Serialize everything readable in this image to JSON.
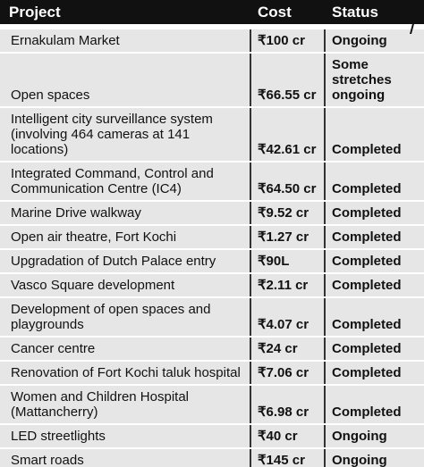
{
  "table": {
    "header": [
      "Project",
      "Cost",
      "Status"
    ],
    "rows": [
      [
        "Ernakulam Market",
        "₹100 cr",
        "Ongoing"
      ],
      [
        "Open spaces",
        "₹66.55 cr",
        "Some stretches ongoing"
      ],
      [
        "Intelligent city surveillance system (involving 464 cameras at 141 locations)",
        "₹42.61 cr",
        "Completed"
      ],
      [
        "Integrated Command, Control and Communication Centre (IC4)",
        "₹64.50 cr",
        "Completed"
      ],
      [
        "Marine Drive walkway",
        "₹9.52 cr",
        "Completed"
      ],
      [
        "Open air theatre, Fort Kochi",
        "₹1.27 cr",
        "Completed"
      ],
      [
        "Upgradation of Dutch Palace entry",
        "₹90L",
        "Completed"
      ],
      [
        "Vasco Square development",
        "₹2.11 cr",
        "Completed"
      ],
      [
        "Development of open spaces and playgrounds",
        "₹4.07 cr",
        "Completed"
      ],
      [
        "Cancer centre",
        "₹24 cr",
        "Completed"
      ],
      [
        "Renovation of Fort Kochi taluk hospital",
        "₹7.06 cr",
        "Completed"
      ],
      [
        "Women and Children Hospital (Mattancherry)",
        "₹6.98 cr",
        "Completed"
      ],
      [
        "LED streetlights",
        "₹40 cr",
        "Ongoing"
      ],
      [
        "Smart roads",
        "₹145 cr",
        "Ongoing"
      ]
    ]
  }
}
